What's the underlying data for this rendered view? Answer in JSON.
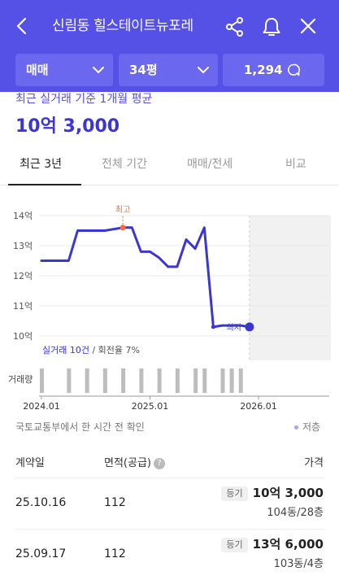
{
  "header": {
    "title": "신림동 힐스테이트뉴포레"
  },
  "filters": {
    "trade_type": "매매",
    "area": "34평",
    "chat_count": "1,294"
  },
  "summary": {
    "subtitle": "최근 실거래 기준 1개월 평균",
    "price": "10억 3,000"
  },
  "tabs": [
    {
      "label": "최근 3년",
      "active": true
    },
    {
      "label": "전체 기간",
      "active": false
    },
    {
      "label": "매매/전세",
      "active": false
    },
    {
      "label": "비교",
      "active": false
    }
  ],
  "chart_data": {
    "type": "line",
    "y_tick_labels": [
      "14억",
      "13억",
      "12억",
      "11억",
      "10억"
    ],
    "ylim": [
      10,
      14
    ],
    "x_tick_labels": [
      "2024.01",
      "2025.01",
      "2026.01"
    ],
    "series": [
      {
        "x": [
          "2024-01",
          "2024-04",
          "2024-05",
          "2024-06",
          "2024-08",
          "2024-10",
          "2024-11",
          "2024-12",
          "2025-01",
          "2025-02",
          "2025-03",
          "2025-04",
          "2025-05",
          "2025-06",
          "2025-07",
          "2025-08",
          "2025-09",
          "2025-10",
          "2025-11",
          "2025-12"
        ],
        "values": [
          12.5,
          12.5,
          13.5,
          13.5,
          13.5,
          13.6,
          13.6,
          12.8,
          12.8,
          12.6,
          12.3,
          12.3,
          13.2,
          12.9,
          13.6,
          10.3,
          10.35,
          10.35,
          10.35,
          10.3
        ]
      }
    ],
    "high_label": "최고",
    "high_value": 13.6,
    "low_label": "최저",
    "low_value": 10.3,
    "volume_label": "거래량",
    "volume_bars": [
      "2024-01",
      "2024-04",
      "2024-06",
      "2024-08",
      "2024-10",
      "2024-12",
      "2025-02",
      "2025-04",
      "2025-06",
      "2025-07",
      "2025-09",
      "2025-10",
      "2025-11"
    ],
    "transactions_text": "실거래 10건",
    "turnover_text": "/ 회전율 7%",
    "colors": {
      "line": "#3b36d1",
      "high": "#f36b3e",
      "grid": "#e8e8e8",
      "future": "#f1f1f1",
      "volume": "#bdbdbd"
    }
  },
  "footer": {
    "source": "국토교통부에서 한 시간 전 확인",
    "low_legend": "저층"
  },
  "table": {
    "headers": {
      "date": "계약일",
      "area": "면적(공급)",
      "price": "가격"
    },
    "help_icon": "?",
    "rows": [
      {
        "date": "25.10.16",
        "area": "112",
        "badge": "등기",
        "price": "10억 3,000",
        "floor": "104동/28층"
      },
      {
        "date": "25.09.17",
        "area": "112",
        "badge": "등기",
        "price": "13억 6,000",
        "floor": "103동/4층"
      }
    ]
  }
}
